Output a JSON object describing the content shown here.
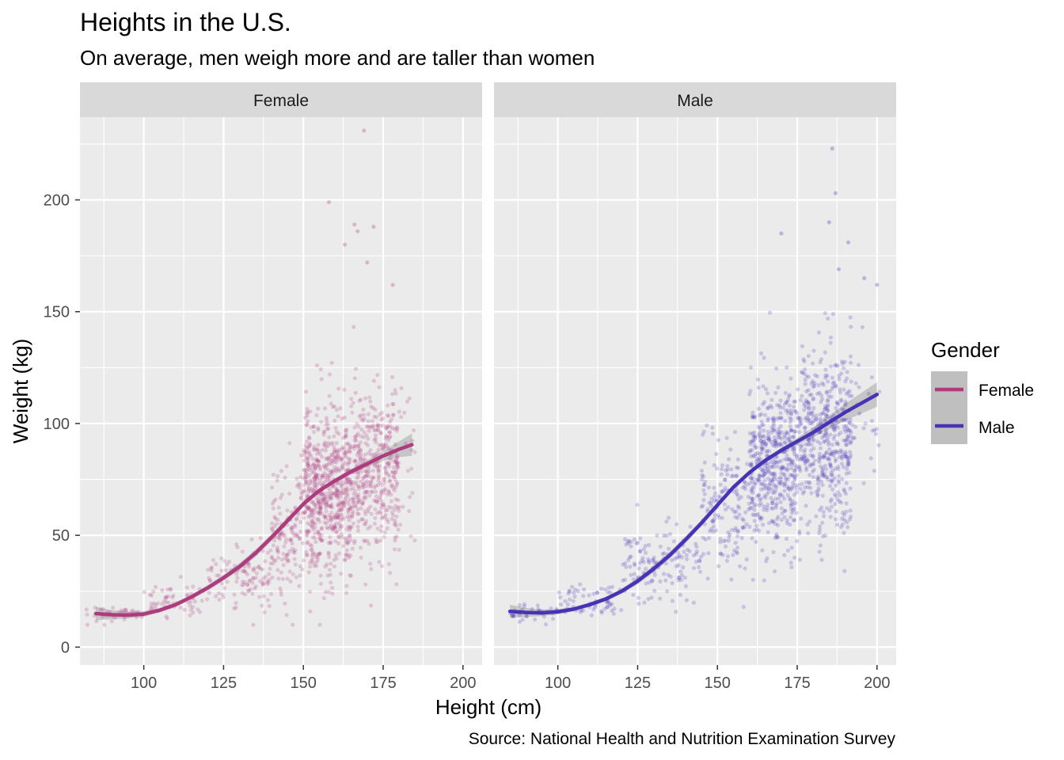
{
  "title": "Heights in the U.S.",
  "subtitle": "On average, men weigh more and are taller than women",
  "caption": "Source: National Health and Nutrition Examination Survey",
  "colors": {
    "female": "#ad3b7e",
    "male": "#4634b5",
    "panel_bg": "#ebebeb",
    "strip_bg": "#d9d9d9",
    "grid": "#ffffff",
    "ribbon": "#999999"
  },
  "chart_data": {
    "type": "scatter",
    "xlabel": "Height (cm)",
    "ylabel": "Weight (kg)",
    "xlim": [
      80,
      206
    ],
    "ylim": [
      -8,
      237
    ],
    "x_ticks": [
      100,
      125,
      150,
      175,
      200
    ],
    "y_ticks": [
      0,
      50,
      100,
      150,
      200
    ],
    "grid": true,
    "legend": {
      "title": "Gender",
      "position": "right",
      "entries": [
        "Female",
        "Male"
      ]
    },
    "facets": [
      {
        "strip": "Female",
        "series": "Female",
        "smooth_x": [
          85,
          90,
          95,
          100,
          105,
          110,
          115,
          120,
          125,
          130,
          135,
          140,
          145,
          150,
          155,
          160,
          165,
          170,
          175,
          180,
          184
        ],
        "smooth_y": [
          15,
          14.5,
          14.3,
          14.8,
          16.5,
          19,
          22.5,
          26.5,
          31,
          36,
          42,
          49,
          56.5,
          64,
          70,
          74.5,
          78.5,
          82,
          85.5,
          88.5,
          90.5
        ],
        "ribbon_halfwidth": [
          3,
          2,
          1.5,
          1.2,
          1,
          1,
          1,
          1.2,
          1.4,
          1.6,
          1.6,
          1.6,
          1.4,
          1.2,
          1,
          1,
          1.2,
          1.6,
          2.2,
          3.5,
          5
        ],
        "points_by_height_band": [
          {
            "x": [
              82,
              100
            ],
            "y_mean": 15,
            "y_sd": 2,
            "n": 40
          },
          {
            "x": [
              100,
              120
            ],
            "y_mean": 21,
            "y_sd": 3.5,
            "n": 60
          },
          {
            "x": [
              120,
              140
            ],
            "y_mean": 32,
            "y_sd": 7,
            "n": 110
          },
          {
            "x": [
              140,
              150
            ],
            "y_mean": 52,
            "y_sd": 14,
            "n": 140
          },
          {
            "x": [
              150,
              165
            ],
            "y_mean": 70,
            "y_sd": 18,
            "n": 650
          },
          {
            "x": [
              165,
              180
            ],
            "y_mean": 78,
            "y_sd": 19,
            "n": 420
          },
          {
            "x": [
              180,
              185
            ],
            "y_mean": 82,
            "y_sd": 18,
            "n": 20
          }
        ],
        "outliers": [
          [
            169,
            231
          ],
          [
            158,
            199
          ],
          [
            166,
            189
          ],
          [
            172,
            188
          ],
          [
            167,
            186
          ],
          [
            163,
            180
          ],
          [
            170,
            172
          ],
          [
            178,
            162
          ]
        ]
      },
      {
        "strip": "Male",
        "series": "Male",
        "smooth_x": [
          85,
          90,
          95,
          100,
          105,
          110,
          115,
          120,
          125,
          130,
          135,
          140,
          145,
          150,
          155,
          160,
          165,
          170,
          175,
          180,
          185,
          190,
          195,
          200
        ],
        "smooth_y": [
          16,
          15.5,
          15.3,
          15.8,
          17,
          19,
          21.5,
          25,
          29.5,
          35,
          41,
          48,
          55.5,
          63.5,
          71.5,
          78,
          83.5,
          88,
          92,
          96,
          100.5,
          105,
          109,
          113
        ],
        "ribbon_halfwidth": [
          3,
          2,
          1.5,
          1.2,
          1,
          1,
          1,
          1.2,
          1.4,
          1.6,
          1.6,
          1.6,
          1.4,
          1.2,
          1,
          1,
          1,
          1.2,
          1.6,
          2.2,
          3,
          3.8,
          4.6,
          5.5
        ],
        "points_by_height_band": [
          {
            "x": [
              84,
              100
            ],
            "y_mean": 15.5,
            "y_sd": 2,
            "n": 40
          },
          {
            "x": [
              100,
              120
            ],
            "y_mean": 21,
            "y_sd": 3.5,
            "n": 60
          },
          {
            "x": [
              120,
              145
            ],
            "y_mean": 38,
            "y_sd": 8,
            "n": 140
          },
          {
            "x": [
              145,
              160
            ],
            "y_mean": 63,
            "y_sd": 14,
            "n": 160
          },
          {
            "x": [
              160,
              175
            ],
            "y_mean": 82,
            "y_sd": 18,
            "n": 480
          },
          {
            "x": [
              175,
              192
            ],
            "y_mean": 92,
            "y_sd": 20,
            "n": 480
          },
          {
            "x": [
              192,
              201
            ],
            "y_mean": 105,
            "y_sd": 18,
            "n": 25
          }
        ],
        "outliers": [
          [
            186,
            223
          ],
          [
            187,
            203
          ],
          [
            185,
            190
          ],
          [
            191,
            181
          ],
          [
            170,
            185
          ],
          [
            196,
            165
          ],
          [
            200,
            162
          ],
          [
            188,
            169
          ]
        ]
      }
    ]
  }
}
